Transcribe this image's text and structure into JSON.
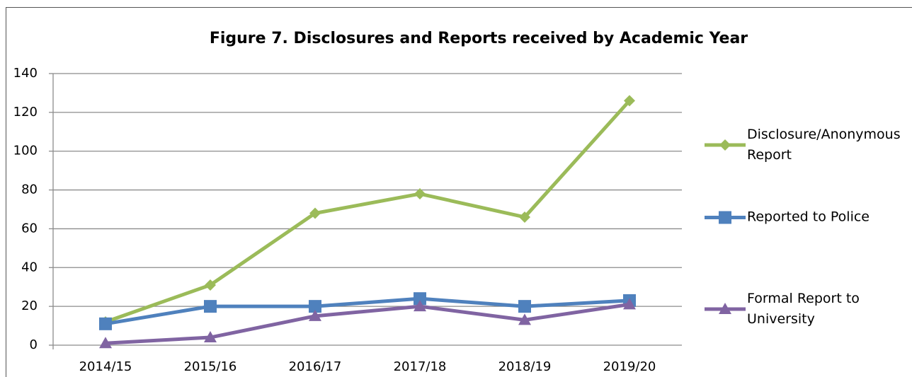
{
  "chart_data": {
    "type": "line",
    "title": "Figure 7. Disclosures and Reports received by Academic Year",
    "categories": [
      "2014/15",
      "2015/16",
      "2016/17",
      "2017/18",
      "2018/19",
      "2019/20"
    ],
    "series": [
      {
        "name": "Disclosure/Anonymous Report",
        "color": "#9bbb59",
        "marker": "diamond",
        "values": [
          12,
          31,
          68,
          78,
          66,
          126
        ]
      },
      {
        "name": "Reported to Police",
        "color": "#4f81bd",
        "marker": "square",
        "values": [
          11,
          20,
          20,
          24,
          20,
          23
        ]
      },
      {
        "name": "Formal Report to University",
        "color": "#8064a2",
        "marker": "triangle",
        "values": [
          1,
          4,
          15,
          20,
          13,
          21
        ]
      }
    ],
    "ylim": [
      0,
      140
    ],
    "yticks": [
      0,
      20,
      40,
      60,
      80,
      100,
      120,
      140
    ],
    "grid": true,
    "legend": "right"
  }
}
